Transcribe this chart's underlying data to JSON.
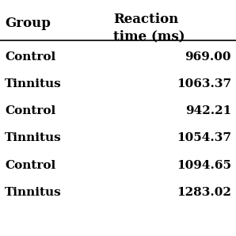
{
  "col1_header": "Group",
  "col2_header": "Reaction\ntime (ms)",
  "rows": [
    [
      "Control",
      "969.00"
    ],
    [
      "Tinnitus",
      "1063.37"
    ],
    [
      "Control",
      "942.21"
    ],
    [
      "Tinnitus",
      "1054.37"
    ],
    [
      "Control",
      "1094.65"
    ],
    [
      "Tinnitus",
      "1283.02"
    ]
  ],
  "background_color": "#ffffff",
  "header_fontsize": 12,
  "cell_fontsize": 11,
  "font_weight_header": "bold",
  "font_weight_cell": "bold"
}
